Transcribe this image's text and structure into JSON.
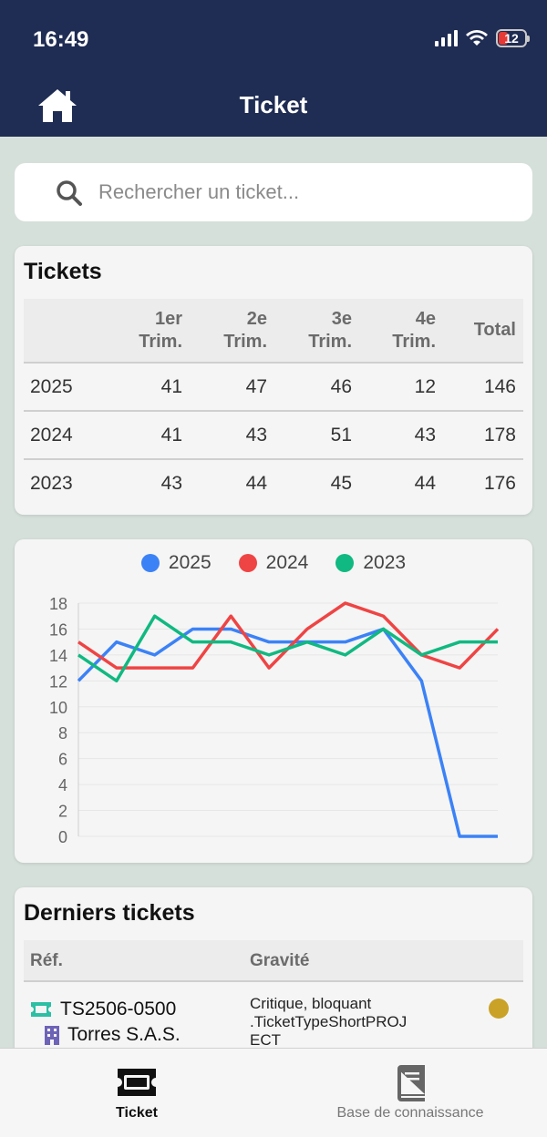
{
  "status": {
    "time": "16:49",
    "battery": "12"
  },
  "header": {
    "title": "Ticket"
  },
  "search": {
    "placeholder": "Rechercher un ticket..."
  },
  "tickets_table": {
    "title": "Tickets",
    "columns": [
      "",
      "1er\nTrim.",
      "2e\nTrim.",
      "3e\nTrim.",
      "4e\nTrim.",
      "Total"
    ],
    "rows": [
      {
        "year": "2025",
        "q1": "41",
        "q2": "47",
        "q3": "46",
        "q4": "12",
        "total": "146"
      },
      {
        "year": "2024",
        "q1": "41",
        "q2": "43",
        "q3": "51",
        "q4": "43",
        "total": "178"
      },
      {
        "year": "2023",
        "q1": "43",
        "q2": "44",
        "q3": "45",
        "q4": "44",
        "total": "176"
      }
    ]
  },
  "chart_data": {
    "type": "line",
    "title": "",
    "xlabel": "",
    "ylabel": "",
    "ylim": [
      0,
      18
    ],
    "yticks": [
      "0",
      "2",
      "4",
      "6",
      "8",
      "10",
      "12",
      "14",
      "16",
      "18"
    ],
    "grid": true,
    "legend_position": "top",
    "x": [
      1,
      2,
      3,
      4,
      5,
      6,
      7,
      8,
      9,
      10,
      11,
      12
    ],
    "series": [
      {
        "name": "2025",
        "color": "#3b82f6",
        "values": [
          12,
          15,
          14,
          16,
          16,
          15,
          15,
          15,
          16,
          12,
          0,
          0
        ]
      },
      {
        "name": "2024",
        "color": "#ef4444",
        "values": [
          15,
          13,
          13,
          13,
          17,
          13,
          16,
          18,
          17,
          14,
          13,
          16
        ]
      },
      {
        "name": "2023",
        "color": "#10b981",
        "values": [
          14,
          12,
          17,
          15,
          15,
          14,
          15,
          14,
          16,
          14,
          15,
          15
        ]
      }
    ]
  },
  "latest": {
    "title": "Derniers tickets",
    "col_ref": "Réf.",
    "col_gravity": "Gravité",
    "rows": [
      {
        "ref": "TS2506-0500",
        "company": "Torres S.A.S.",
        "gravity": "Critique, bloquant",
        "type": ".TicketTypeShortPROJ",
        "type_cont": "ECT",
        "status_color": "#c9a227"
      }
    ]
  },
  "nav": {
    "items": [
      {
        "label": "Ticket",
        "icon": "ticket-icon",
        "active": true
      },
      {
        "label": "Base de connaissance",
        "icon": "book-icon",
        "active": false
      }
    ]
  },
  "colors": {
    "header": "#1f2c53",
    "background": "#d5e0da"
  }
}
